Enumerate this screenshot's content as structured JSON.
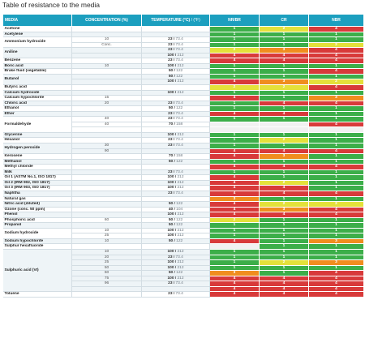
{
  "title": "Table of resistance to the media",
  "headers": [
    "MEDIA",
    "CONCENTRATION (%)",
    "TEMPERATURE (°C)",
    "NR/BR",
    "CR",
    "NBR"
  ],
  "headers_sub": " / (°F)",
  "colors": {
    "header": "#1c9fbf",
    "1": "#3cae49",
    "2": "#e4e13b",
    "3": "#f08d1f",
    "4": "#d83a3a"
  },
  "rows": [
    {
      "media": "Acetone",
      "span": 1,
      "conc": "",
      "tc": "",
      "tf": "",
      "r": [
        "1",
        "2",
        "4"
      ]
    },
    {
      "media": "Acetylene",
      "span": 1,
      "conc": "",
      "tc": "",
      "tf": "",
      "r": [
        "1",
        "1",
        "1"
      ]
    },
    {
      "media": "Ammonium hydroxide",
      "span": 2,
      "conc": "10",
      "tc": "23",
      "tf": "73.4",
      "r": [
        "1",
        "1",
        "1"
      ]
    },
    {
      "conc": "Conc.",
      "tc": "23",
      "tf": "73.4",
      "r": [
        "1",
        "1",
        "2"
      ]
    },
    {
      "media": "Aniline",
      "span": 2,
      "conc": "",
      "tc": "23",
      "tf": "73.4",
      "r": [
        "2",
        "3",
        "4"
      ]
    },
    {
      "conc": "",
      "tc": "100",
      "tf": "212",
      "r": [
        "4",
        "4",
        "4"
      ]
    },
    {
      "media": "Benzene",
      "span": 1,
      "conc": "",
      "tc": "23",
      "tf": "73.4",
      "r": [
        "4",
        "4",
        "4"
      ]
    },
    {
      "media": "Boric acid",
      "span": 1,
      "conc": "10",
      "tc": "100",
      "tf": "212",
      "r": [
        "1",
        "1",
        "1"
      ]
    },
    {
      "media": "Brake fluid (vegetable)",
      "span": 1,
      "conc": "",
      "tc": "50",
      "tf": "122",
      "r": [
        "1",
        "1",
        "4"
      ]
    },
    {
      "media": "Butanol",
      "span": 2,
      "conc": "",
      "tc": "50",
      "tf": "122",
      "r": [
        "1",
        "1",
        "1"
      ]
    },
    {
      "conc": "",
      "tc": "100",
      "tf": "212",
      "r": [
        "4",
        "3",
        "2"
      ]
    },
    {
      "media": "Butyric acid",
      "span": 1,
      "conc": "",
      "tc": "",
      "tf": "",
      "r": [
        "2",
        "2",
        "4"
      ]
    },
    {
      "media": "Calcium hydroxide",
      "span": 1,
      "conc": "",
      "tc": "100",
      "tf": "212",
      "r": [
        "1",
        "1",
        "1"
      ]
    },
    {
      "media": "Calcium hypochlorite",
      "span": 1,
      "conc": "15",
      "tc": "",
      "tf": "",
      "r": [
        "4",
        "1",
        "3"
      ]
    },
    {
      "media": "Chloric acid",
      "span": 1,
      "conc": "20",
      "tc": "23",
      "tf": "73.4",
      "r": [
        "1",
        "4",
        "4"
      ]
    },
    {
      "media": "Ethanol",
      "span": 1,
      "conc": "",
      "tc": "50",
      "tf": "122",
      "r": [
        "1",
        "1",
        "1"
      ]
    },
    {
      "media": "Ether",
      "span": 1,
      "conc": "",
      "tc": "23",
      "tf": "73.4",
      "r": [
        "4",
        "4",
        "1"
      ]
    },
    {
      "media": "Formaldehyde",
      "span": 3,
      "conc": "40",
      "tc": "23",
      "tf": "73.4",
      "r": [
        "1",
        "1",
        "1"
      ]
    },
    {
      "conc": "40",
      "tc": "70",
      "tf": "158",
      "r": [
        "",
        "",
        "4"
      ]
    },
    {
      "conc": "",
      "tc": "",
      "tf": "",
      "r": [
        "",
        "",
        ""
      ]
    },
    {
      "media": "Glycerine",
      "span": 1,
      "conc": "",
      "tc": "100",
      "tf": "212",
      "r": [
        "1",
        "1",
        "1"
      ]
    },
    {
      "media": "Hexanol",
      "span": 1,
      "conc": "",
      "tc": "23",
      "tf": "73.4",
      "r": [
        "1",
        "2",
        "1"
      ]
    },
    {
      "media": "Hydrogen peroxide",
      "span": 2,
      "conc": "30",
      "tc": "23",
      "tf": "73.4",
      "r": [
        "1",
        "1",
        "1"
      ]
    },
    {
      "conc": "90",
      "tc": "",
      "tf": "",
      "r": [
        "4",
        "4",
        "4"
      ]
    },
    {
      "media": "Kerosene",
      "span": 1,
      "conc": "",
      "tc": "70",
      "tf": "158",
      "r": [
        "4",
        "3",
        "1"
      ]
    },
    {
      "media": "Methanol",
      "span": 1,
      "conc": "",
      "tc": "50",
      "tf": "122",
      "r": [
        "1",
        "1",
        "1"
      ]
    },
    {
      "media": "Methyl chloride",
      "span": 1,
      "conc": "",
      "tc": "",
      "tf": "",
      "r": [
        "4",
        "4",
        "4"
      ]
    },
    {
      "media": "Milk",
      "span": 1,
      "conc": "",
      "tc": "23",
      "tf": "73.4",
      "r": [
        "1",
        "1",
        "1"
      ]
    },
    {
      "media": "Oil 1 (ASTM No.1, ISO 1817)",
      "span": 1,
      "conc": "",
      "tc": "100",
      "tf": "212",
      "r": [
        "4",
        "1",
        "1"
      ]
    },
    {
      "media": "Oil 2 (IRM 902, ISO 1817)",
      "span": 1,
      "conc": "",
      "tc": "100",
      "tf": "212",
      "r": [
        "4",
        "2",
        "1"
      ]
    },
    {
      "media": "Oil 3 (IRM 903, ISO 1817)",
      "span": 1,
      "conc": "",
      "tc": "100",
      "tf": "212",
      "r": [
        "4",
        "4",
        "1"
      ]
    },
    {
      "media": "Naphtha",
      "span": 1,
      "conc": "",
      "tc": "23",
      "tf": "73.4",
      "r": [
        "4",
        "4",
        "4"
      ]
    },
    {
      "media": "Natural gas",
      "span": 1,
      "conc": "",
      "tc": "",
      "tf": "",
      "r": [
        "3",
        "1",
        "1"
      ]
    },
    {
      "media": "Nitric acid (diluted)",
      "span": 1,
      "conc": "",
      "tc": "50",
      "tf": "122",
      "r": [
        "4",
        "2",
        "2"
      ]
    },
    {
      "media": "Ozone (conc. 50 ppm)",
      "span": 1,
      "conc": "",
      "tc": "40",
      "tf": "104",
      "r": [
        "4",
        "3",
        "4"
      ]
    },
    {
      "media": "Phenol",
      "span": 1,
      "conc": "",
      "tc": "100",
      "tf": "212",
      "r": [
        "4",
        "4",
        "4"
      ]
    },
    {
      "media": "Phosphoric acid",
      "span": 1,
      "conc": "60",
      "tc": "50",
      "tf": "122",
      "r": [
        "2",
        "1",
        "1"
      ]
    },
    {
      "media": "Propanol",
      "span": 1,
      "conc": "",
      "tc": "50",
      "tf": "122",
      "r": [
        "1",
        "1",
        "1"
      ]
    },
    {
      "media": "Sodium hydroxide",
      "span": 2,
      "conc": "10",
      "tc": "100",
      "tf": "212",
      "r": [
        "1",
        "1",
        "1"
      ]
    },
    {
      "conc": "25",
      "tc": "100",
      "tf": "212",
      "r": [
        "1",
        "1",
        "1"
      ]
    },
    {
      "media": "Sodium hypochlorite",
      "span": 1,
      "conc": "10",
      "tc": "50",
      "tf": "122",
      "r": [
        "4",
        "1",
        "3"
      ]
    },
    {
      "media": "Sulphur hexafluoride",
      "span": 1,
      "conc": "",
      "tc": "",
      "tf": "",
      "r": [
        "",
        "1",
        "1"
      ]
    },
    {
      "media": "Sulphuric acid (VI)",
      "span": 8,
      "conc": "10",
      "tc": "100",
      "tf": "212",
      "r": [
        "1",
        "1",
        "1"
      ]
    },
    {
      "conc": "20",
      "tc": "23",
      "tf": "73.4",
      "r": [
        "1",
        "1",
        "1"
      ]
    },
    {
      "conc": "25",
      "tc": "100",
      "tf": "212",
      "r": [
        "1",
        "2",
        "3"
      ]
    },
    {
      "conc": "50",
      "tc": "100",
      "tf": "212",
      "r": [
        "1",
        "1",
        "1"
      ]
    },
    {
      "conc": "60",
      "tc": "50",
      "tf": "122",
      "r": [
        "3",
        "1",
        "4"
      ]
    },
    {
      "conc": "75",
      "tc": "100",
      "tf": "212",
      "r": [
        "4",
        "4",
        "4"
      ]
    },
    {
      "conc": "96",
      "tc": "23",
      "tf": "73.4",
      "r": [
        "4",
        "4",
        "4"
      ]
    },
    {
      "conc": "",
      "tc": "",
      "tf": "",
      "r": [
        "4",
        "4",
        "4"
      ]
    },
    {
      "media": "Toluene",
      "span": 1,
      "conc": "",
      "tc": "23",
      "tf": "73.4",
      "r": [
        "4",
        "4",
        "4"
      ]
    }
  ]
}
